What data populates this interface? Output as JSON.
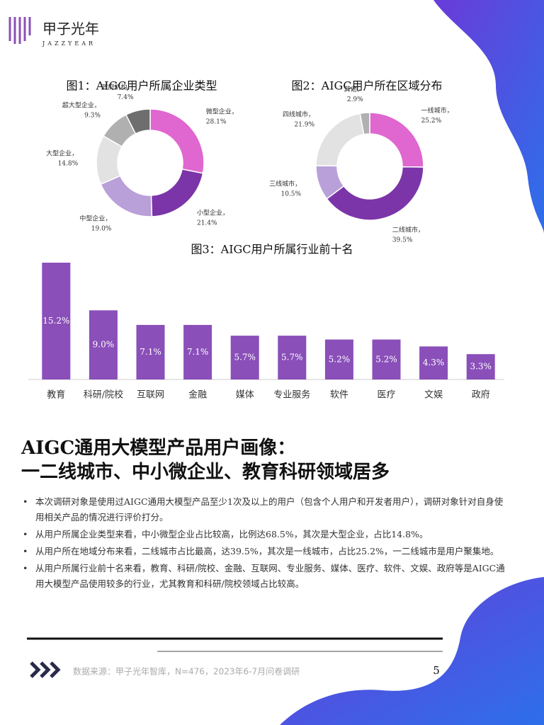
{
  "header": {
    "brand": "甲子光年",
    "brand_en": "JAZZYEAR"
  },
  "chart_data": [
    {
      "type": "pie",
      "title": "图1：AIGC用户所属企业类型",
      "categories": [
        "微型企业，",
        "小型企业，",
        "中型企业，",
        "大型企业，",
        "超大型企业，",
        "政府机构，"
      ],
      "values": [
        28.1,
        21.4,
        19.0,
        14.8,
        9.3,
        7.4
      ],
      "value_labels": [
        "28.1%",
        "21.4%",
        "19.0%",
        "14.8%",
        "9.3%",
        "7.4%"
      ],
      "colors": [
        "#e066d0",
        "#7b35a8",
        "#b9a0d9",
        "#e2e2e2",
        "#b0b0b0",
        "#6e6e6e"
      ]
    },
    {
      "type": "pie",
      "title": "图2：AIGC用户所在区域分布",
      "categories": [
        "一线城市，",
        "二线城市，",
        "三线城市，",
        "四线城市，",
        "其他，"
      ],
      "values": [
        25.2,
        39.5,
        10.5,
        21.9,
        2.9
      ],
      "value_labels": [
        "25.2%",
        "39.5%",
        "10.5%",
        "21.9%",
        "2.9%"
      ],
      "colors": [
        "#e066d0",
        "#7b35a8",
        "#b9a0d9",
        "#e2e2e2",
        "#b0b0b0"
      ]
    },
    {
      "type": "bar",
      "title": "图3：AIGC用户所属行业前十名",
      "categories": [
        "教育",
        "科研/院校",
        "互联网",
        "金融",
        "媒体",
        "专业服务",
        "软件",
        "医疗",
        "文娱",
        "政府"
      ],
      "values": [
        15.2,
        9.0,
        7.1,
        7.1,
        5.7,
        5.7,
        5.2,
        5.2,
        4.3,
        3.3
      ],
      "value_labels": [
        "15.2%",
        "9.0%",
        "7.1%",
        "7.1%",
        "5.7%",
        "5.7%",
        "5.2%",
        "5.2%",
        "4.3%",
        "3.3%"
      ],
      "color": "#8a4fb9"
    }
  ],
  "headline": [
    "AIGC通用大模型产品用户画像：",
    "一二线城市、中小微企业、教育科研领域居多"
  ],
  "bullets": [
    "本次调研对象是使用过AIGC通用大模型产品至少1次及以上的用户（包含个人用户和开发者用户），调研对象针对自身使用相关产品的情况进行评价打分。",
    "从用户所属企业类型来看，中小微型企业占比较高，比例达68.5%，其次是大型企业，占比14.8%。",
    "从用户所在地域分布来看，二线城市占比最高，达39.5%，其次是一线城市，占比25.2%，一二线城市是用户聚集地。",
    "从用户所属行业前十名来看，教育、科研/院校、金融、互联网、专业服务、媒体、医疗、软件、文娱、政府等是AIGC通用大模型产品使用较多的行业，尤其教育和科研/院校领域占比较高。"
  ],
  "footer": {
    "source": "数据来源：甲子光年智库，N=476，2023年6-7月问卷调研",
    "page": 5
  }
}
